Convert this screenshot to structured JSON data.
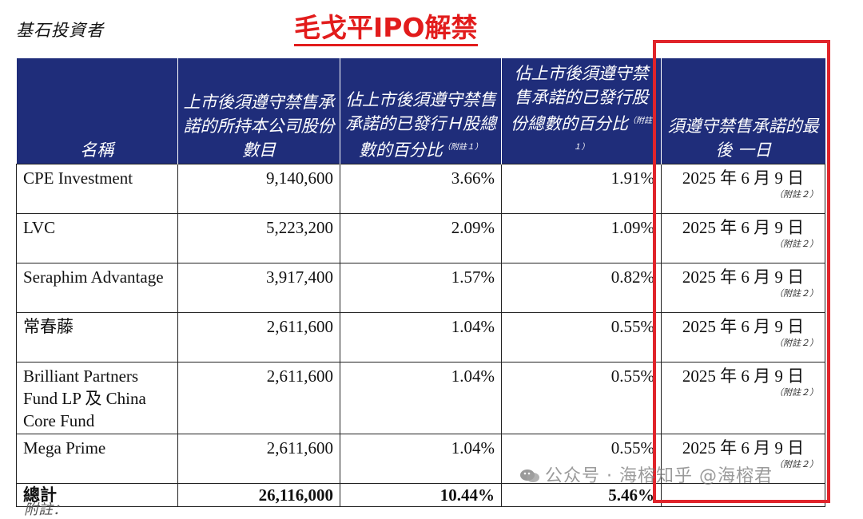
{
  "section_title": "基石投資者",
  "headline": "毛戈平IPO解禁",
  "table": {
    "headers": [
      {
        "text": "名稱",
        "note": ""
      },
      {
        "text": "上市後須遵守禁售承諾的所持本公司股份數目",
        "note": ""
      },
      {
        "text": "佔上市後須遵守禁售承諾的已發行Ｈ股總數的百分比",
        "note": "（附註１）"
      },
      {
        "text": "佔上市後須遵守禁售承諾的已發行股份總數的百分比",
        "note": "（附註１）"
      },
      {
        "text": "須遵守禁售承諾的最後 一日",
        "note": ""
      }
    ],
    "rows": [
      {
        "name": "CPE Investment",
        "shares": "9,140,600",
        "h_pct": "3.66%",
        "total_pct": "1.91%",
        "date": "2025 年 6 月 9 日",
        "date_note": "（附註２）"
      },
      {
        "name": "LVC",
        "shares": "5,223,200",
        "h_pct": "2.09%",
        "total_pct": "1.09%",
        "date": "2025 年 6 月 9 日",
        "date_note": "（附註２）"
      },
      {
        "name": "Seraphim Advantage",
        "shares": "3,917,400",
        "h_pct": "1.57%",
        "total_pct": "0.82%",
        "date": "2025 年 6 月 9 日",
        "date_note": "（附註２）"
      },
      {
        "name": "常春藤",
        "shares": "2,611,600",
        "h_pct": "1.04%",
        "total_pct": "0.55%",
        "date": "2025 年 6 月 9 日",
        "date_note": "（附註２）"
      },
      {
        "name": "Brilliant Partners Fund LP 及 China Core Fund",
        "shares": "2,611,600",
        "h_pct": "1.04%",
        "total_pct": "0.55%",
        "date": "2025 年 6 月 9 日",
        "date_note": "（附註２）"
      },
      {
        "name": "Mega Prime",
        "shares": "2,611,600",
        "h_pct": "1.04%",
        "total_pct": "0.55%",
        "date": "2025 年 6 月 9 日",
        "date_note": "（附註２）"
      }
    ],
    "total": {
      "name": "總計",
      "shares": "26,116,000",
      "h_pct": "10.44%",
      "total_pct": "5.46%",
      "date": ""
    }
  },
  "watermark": "公众号 · 海榕知乎 @海榕君",
  "footnote": "附註："
}
